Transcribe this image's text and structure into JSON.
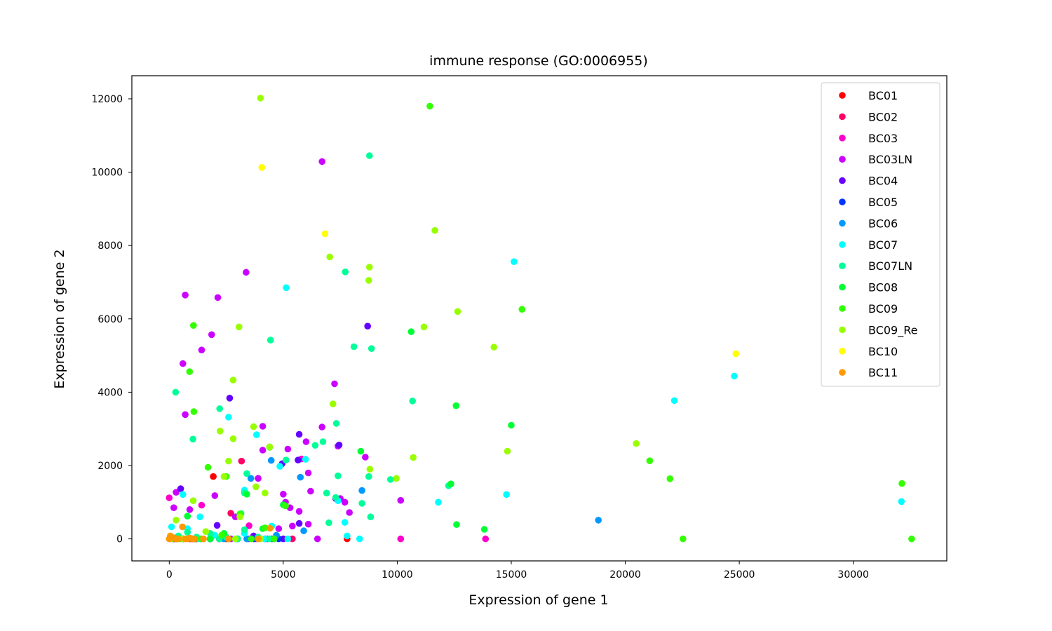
{
  "chart_data": {
    "type": "scatter",
    "title": "immune response (GO:0006955)",
    "xlabel": "Expression of gene 1",
    "ylabel": "Expression of gene 2",
    "xlim": [
      -1640,
      34100
    ],
    "ylim": [
      -600,
      12630
    ],
    "xticks": [
      0,
      5000,
      10000,
      15000,
      20000,
      25000,
      30000
    ],
    "yticks": [
      0,
      2000,
      4000,
      6000,
      8000,
      10000,
      12000
    ],
    "xtick_labels": [
      "0",
      "5000",
      "10000",
      "15000",
      "20000",
      "25000",
      "30000"
    ],
    "ytick_labels": [
      "0",
      "2000",
      "4000",
      "6000",
      "8000",
      "10000",
      "12000"
    ],
    "grid": false,
    "legend_position": "top-right",
    "series": [
      {
        "name": "BC01",
        "color": "#ff0000",
        "points": [
          [
            1930,
            1700
          ],
          [
            7800,
            0
          ],
          [
            200,
            0
          ],
          [
            600,
            0
          ],
          [
            1200,
            0
          ],
          [
            2500,
            0
          ]
        ]
      },
      {
        "name": "BC02",
        "color": "#ff0066",
        "points": [
          [
            3170,
            2120
          ],
          [
            2700,
            700
          ],
          [
            5400,
            0
          ],
          [
            300,
            0
          ],
          [
            900,
            0
          ],
          [
            1800,
            0
          ]
        ]
      },
      {
        "name": "BC03",
        "color": "#ff00cc",
        "points": [
          [
            0,
            1120
          ],
          [
            1420,
            920
          ],
          [
            3500,
            360
          ],
          [
            13870,
            0
          ],
          [
            10150,
            0
          ],
          [
            5800,
            2180
          ],
          [
            4300,
            0
          ],
          [
            300,
            0
          ],
          [
            1000,
            0
          ],
          [
            2200,
            0
          ]
        ]
      },
      {
        "name": "BC03LN",
        "color": "#cc00ff",
        "points": [
          [
            700,
            6650
          ],
          [
            2130,
            6580
          ],
          [
            3370,
            7270
          ],
          [
            1860,
            5570
          ],
          [
            1420,
            5150
          ],
          [
            600,
            4780
          ],
          [
            700,
            3390
          ],
          [
            6700,
            10290
          ],
          [
            7250,
            4230
          ],
          [
            4100,
            3070
          ],
          [
            6000,
            2650
          ],
          [
            5200,
            2450
          ],
          [
            4100,
            2420
          ],
          [
            6700,
            3050
          ],
          [
            7400,
            2530
          ],
          [
            8600,
            2230
          ],
          [
            6100,
            1800
          ],
          [
            5000,
            1220
          ],
          [
            3900,
            1650
          ],
          [
            6200,
            1300
          ],
          [
            7500,
            1100
          ],
          [
            7700,
            1000
          ],
          [
            5300,
            850
          ],
          [
            6100,
            400
          ],
          [
            6500,
            0
          ],
          [
            7900,
            720
          ],
          [
            5700,
            750
          ],
          [
            10150,
            1050
          ],
          [
            4600,
            0
          ],
          [
            3500,
            0
          ],
          [
            2900,
            600
          ],
          [
            2000,
            1180
          ],
          [
            900,
            800
          ],
          [
            300,
            1270
          ],
          [
            200,
            850
          ],
          [
            5100,
            1000
          ],
          [
            5400,
            350
          ],
          [
            4800,
            280
          ],
          [
            1400,
            0
          ],
          [
            2700,
            0
          ],
          [
            600,
            0
          ],
          [
            100,
            0
          ],
          [
            3800,
            0
          ]
        ]
      },
      {
        "name": "BC04",
        "color": "#6600ff",
        "points": [
          [
            8700,
            5800
          ],
          [
            2650,
            3840
          ],
          [
            5700,
            2850
          ],
          [
            4950,
            2050
          ],
          [
            5650,
            2150
          ],
          [
            7450,
            2560
          ],
          [
            7300,
            1100
          ],
          [
            5700,
            420
          ],
          [
            2100,
            370
          ],
          [
            500,
            1370
          ],
          [
            1800,
            0
          ],
          [
            3000,
            0
          ],
          [
            4200,
            0
          ],
          [
            1000,
            0
          ],
          [
            300,
            0
          ],
          [
            5000,
            0
          ],
          [
            3700,
            80
          ]
        ]
      },
      {
        "name": "BC05",
        "color": "#0033ff",
        "points": [
          [
            3000,
            0
          ],
          [
            4800,
            0
          ],
          [
            3700,
            0
          ],
          [
            1800,
            0
          ],
          [
            600,
            0
          ],
          [
            300,
            0
          ],
          [
            4500,
            0
          ],
          [
            2200,
            0
          ],
          [
            1100,
            0
          ]
        ]
      },
      {
        "name": "BC06",
        "color": "#0099ff",
        "points": [
          [
            18820,
            510
          ],
          [
            8450,
            1320
          ],
          [
            5750,
            1680
          ],
          [
            4470,
            2140
          ],
          [
            3580,
            1650
          ],
          [
            5900,
            220
          ],
          [
            4700,
            100
          ],
          [
            2400,
            0
          ],
          [
            1100,
            0
          ],
          [
            600,
            0
          ],
          [
            3400,
            0
          ]
        ]
      },
      {
        "name": "BC07",
        "color": "#00ffff",
        "points": [
          [
            15120,
            7560
          ],
          [
            5130,
            6850
          ],
          [
            3830,
            2840
          ],
          [
            2600,
            3320
          ],
          [
            5980,
            2170
          ],
          [
            4850,
            1980
          ],
          [
            3300,
            1330
          ],
          [
            600,
            1210
          ],
          [
            1350,
            600
          ],
          [
            7400,
            1040
          ],
          [
            7700,
            450
          ],
          [
            8350,
            0
          ],
          [
            11800,
            1000
          ],
          [
            14790,
            1210
          ],
          [
            22150,
            3770
          ],
          [
            24780,
            4440
          ],
          [
            32110,
            1020
          ],
          [
            4500,
            350
          ],
          [
            7800,
            80
          ],
          [
            3300,
            150
          ],
          [
            800,
            280
          ],
          [
            100,
            330
          ],
          [
            2000,
            100
          ],
          [
            1300,
            0
          ],
          [
            300,
            0
          ],
          [
            2900,
            0
          ],
          [
            4200,
            0
          ],
          [
            5200,
            0
          ]
        ]
      },
      {
        "name": "BC07LN",
        "color": "#00ff99",
        "points": [
          [
            8780,
            10450
          ],
          [
            7720,
            7280
          ],
          [
            4440,
            5420
          ],
          [
            8100,
            5240
          ],
          [
            8870,
            5190
          ],
          [
            10670,
            3760
          ],
          [
            7330,
            3150
          ],
          [
            6740,
            2650
          ],
          [
            6400,
            2550
          ],
          [
            2210,
            3550
          ],
          [
            280,
            4000
          ],
          [
            1040,
            2720
          ],
          [
            5120,
            2150
          ],
          [
            7400,
            1720
          ],
          [
            8750,
            1700
          ],
          [
            6900,
            1250
          ],
          [
            7300,
            1130
          ],
          [
            9700,
            1620
          ],
          [
            12250,
            1450
          ],
          [
            8450,
            970
          ],
          [
            7000,
            440
          ],
          [
            8830,
            600
          ],
          [
            3300,
            1250
          ],
          [
            3400,
            1780
          ],
          [
            3150,
            690
          ],
          [
            3300,
            250
          ],
          [
            1800,
            150
          ],
          [
            2500,
            50
          ],
          [
            800,
            180
          ],
          [
            400,
            80
          ],
          [
            1200,
            50
          ],
          [
            3900,
            50
          ],
          [
            4400,
            0
          ],
          [
            2200,
            0
          ],
          [
            100,
            0
          ],
          [
            600,
            0
          ],
          [
            1500,
            0
          ],
          [
            3000,
            0
          ]
        ]
      },
      {
        "name": "BC08",
        "color": "#00ff33",
        "points": [
          [
            10610,
            5650
          ],
          [
            12580,
            3630
          ],
          [
            15000,
            3100
          ],
          [
            8400,
            2390
          ],
          [
            12350,
            1500
          ],
          [
            12600,
            390
          ],
          [
            13820,
            260
          ],
          [
            5000,
            930
          ],
          [
            2400,
            150
          ],
          [
            1800,
            0
          ],
          [
            800,
            620
          ],
          [
            4100,
            280
          ],
          [
            3400,
            1220
          ],
          [
            300,
            0
          ],
          [
            1100,
            0
          ],
          [
            2600,
            0
          ]
        ]
      },
      {
        "name": "BC09",
        "color": "#33ff00",
        "points": [
          [
            11430,
            11800
          ],
          [
            15470,
            6260
          ],
          [
            1060,
            5820
          ],
          [
            890,
            4560
          ],
          [
            1080,
            3470
          ],
          [
            21070,
            2130
          ],
          [
            21960,
            1640
          ],
          [
            22530,
            0
          ],
          [
            32130,
            1510
          ],
          [
            32560,
            0
          ],
          [
            1700,
            1950
          ],
          [
            2500,
            1700
          ],
          [
            4400,
            2500
          ],
          [
            5100,
            900
          ],
          [
            3100,
            680
          ],
          [
            4200,
            300
          ],
          [
            2300,
            100
          ],
          [
            1400,
            0
          ],
          [
            3600,
            0
          ],
          [
            500,
            0
          ],
          [
            4600,
            0
          ]
        ]
      },
      {
        "name": "BC09_Re",
        "color": "#99ff00",
        "points": [
          [
            4000,
            12020
          ],
          [
            11650,
            8410
          ],
          [
            7040,
            7690
          ],
          [
            8780,
            7410
          ],
          [
            8750,
            7050
          ],
          [
            3060,
            5780
          ],
          [
            11170,
            5780
          ],
          [
            12650,
            6200
          ],
          [
            14240,
            5230
          ],
          [
            2800,
            4330
          ],
          [
            7180,
            3680
          ],
          [
            3700,
            3060
          ],
          [
            2230,
            2940
          ],
          [
            2800,
            2730
          ],
          [
            2600,
            2120
          ],
          [
            2400,
            1700
          ],
          [
            3800,
            1420
          ],
          [
            10700,
            2220
          ],
          [
            14830,
            2390
          ],
          [
            20480,
            2600
          ],
          [
            8800,
            1900
          ],
          [
            9960,
            1650
          ],
          [
            1050,
            1040
          ],
          [
            300,
            510
          ],
          [
            3100,
            600
          ],
          [
            4400,
            2510
          ],
          [
            4200,
            1250
          ],
          [
            1600,
            200
          ],
          [
            600,
            0
          ],
          [
            2900,
            0
          ],
          [
            4000,
            0
          ],
          [
            100,
            0
          ]
        ]
      },
      {
        "name": "BC10",
        "color": "#ffff00",
        "points": [
          [
            4060,
            10130
          ],
          [
            6830,
            8320
          ],
          [
            24850,
            5050
          ]
        ]
      },
      {
        "name": "BC11",
        "color": "#ff9900",
        "points": [
          [
            4420,
            290
          ],
          [
            580,
            330
          ],
          [
            0,
            0
          ],
          [
            200,
            30
          ],
          [
            400,
            0
          ],
          [
            700,
            0
          ],
          [
            900,
            20
          ],
          [
            1100,
            0
          ],
          [
            1500,
            0
          ],
          [
            2600,
            0
          ],
          [
            3900,
            0
          ],
          [
            50,
            80
          ],
          [
            300,
            0
          ],
          [
            800,
            0
          ],
          [
            1000,
            0
          ]
        ]
      }
    ]
  }
}
